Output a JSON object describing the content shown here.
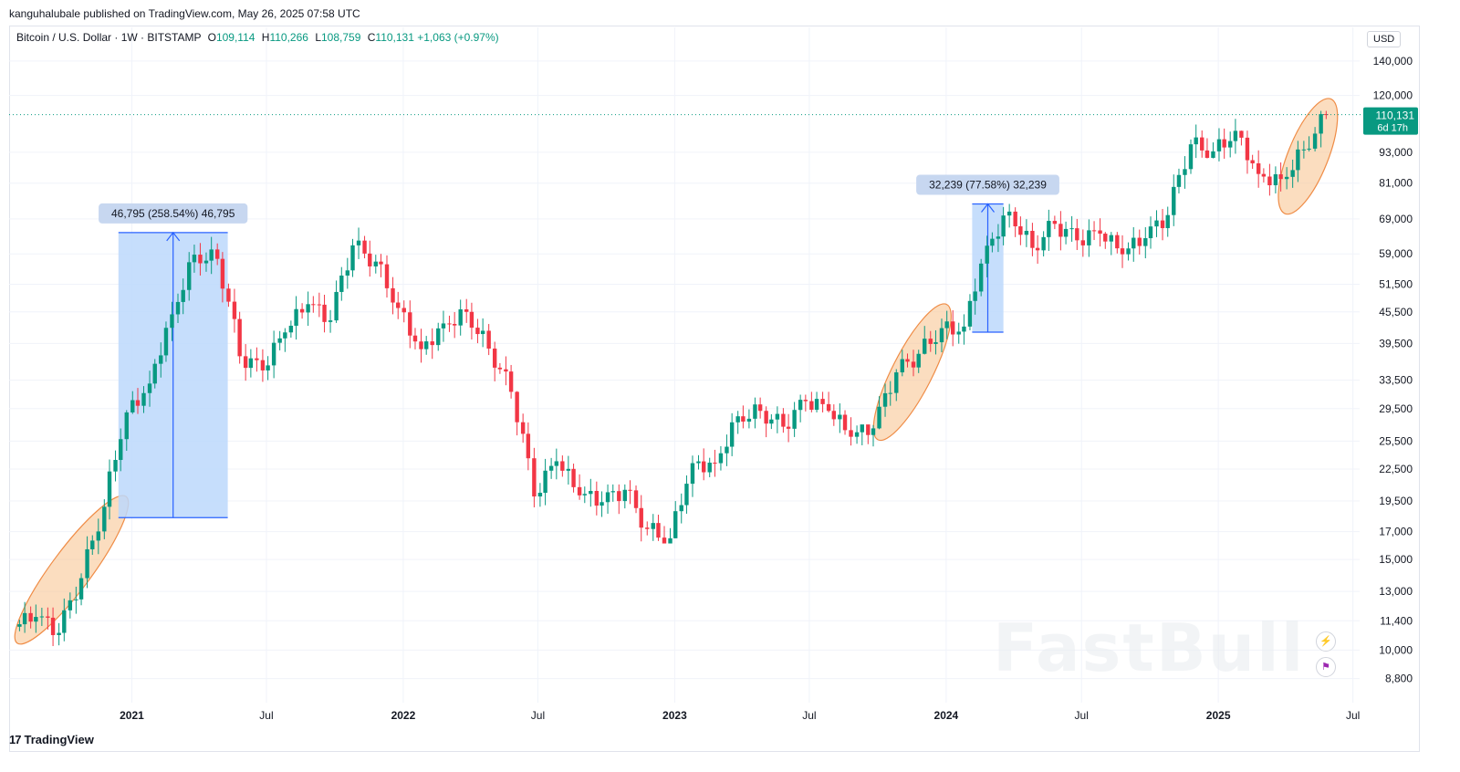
{
  "publisher_line": "kanguhalubale published on TradingView.com, May 26, 2025 07:58 UTC",
  "legend": {
    "symbol": "Bitcoin / U.S. Dollar · 1W · BITSTAMP",
    "o_key": "O",
    "o_val": "109,114",
    "h_key": "H",
    "h_val": "110,266",
    "l_key": "L",
    "l_val": "108,759",
    "c_key": "C",
    "c_val": "110,131",
    "change": "+1,063 (+0.97%)"
  },
  "currency": "USD",
  "brand": "TradingView",
  "watermark": "FastBull",
  "side_icons": [
    "flash-icon",
    "flag-icon"
  ],
  "colors": {
    "up": "#089981",
    "down": "#f23645",
    "measure_fill": "#bcd8fb",
    "measure_line": "#2962ff",
    "ellipse_fill": "#f8c794",
    "ellipse_line": "#ef8c46",
    "last_price_bg": "#089981"
  },
  "chart_data": {
    "type": "candlestick",
    "scale": "log",
    "x": [
      "2020-08",
      "2020-09",
      "2020-10",
      "2020-11",
      "2020-12",
      "2021-01",
      "2021-02",
      "2021-03",
      "2021-04",
      "2021-05",
      "2021-06",
      "2021-07",
      "2021-08",
      "2021-09",
      "2021-10",
      "2021-11",
      "2021-12",
      "2022-01",
      "2022-02",
      "2022-03",
      "2022-04",
      "2022-05",
      "2022-06",
      "2022-07",
      "2022-08",
      "2022-09",
      "2022-10",
      "2022-11",
      "2022-12",
      "2023-01",
      "2023-02",
      "2023-03",
      "2023-04",
      "2023-05",
      "2023-06",
      "2023-07",
      "2023-08",
      "2023-09",
      "2023-10",
      "2023-11",
      "2023-12",
      "2024-01",
      "2024-02",
      "2024-03",
      "2024-04",
      "2024-05",
      "2024-06",
      "2024-07",
      "2024-08",
      "2024-09",
      "2024-10",
      "2024-11",
      "2024-12",
      "2025-01",
      "2025-02",
      "2025-03",
      "2025-04",
      "2025-05"
    ],
    "close": [
      11600,
      10800,
      13800,
      19000,
      29000,
      33000,
      45000,
      58800,
      57700,
      37300,
      35000,
      41500,
      47100,
      43800,
      61300,
      57000,
      46300,
      38500,
      43200,
      45500,
      38600,
      31800,
      19900,
      23300,
      20000,
      19400,
      20500,
      17200,
      16500,
      23100,
      23100,
      28500,
      29200,
      27200,
      30500,
      29200,
      26000,
      27000,
      34700,
      37700,
      42300,
      42600,
      61200,
      71300,
      60600,
      67500,
      62700,
      64600,
      58900,
      63300,
      70200,
      96400,
      93400,
      102400,
      84400,
      82500,
      94200,
      110131
    ],
    "wick_high": [
      12400,
      12100,
      14100,
      19900,
      29300,
      41900,
      58300,
      61700,
      64800,
      59500,
      41300,
      42300,
      50500,
      52900,
      67000,
      69000,
      59000,
      47900,
      45800,
      48200,
      47400,
      39800,
      31900,
      24700,
      25200,
      22700,
      21000,
      21400,
      18400,
      23900,
      25200,
      29200,
      31000,
      29800,
      31400,
      31800,
      30200,
      27400,
      35200,
      38400,
      44700,
      49000,
      64000,
      73800,
      72700,
      71900,
      71900,
      70000,
      65100,
      66500,
      73500,
      99600,
      108300,
      109300,
      102500,
      95000,
      97900,
      111970
    ],
    "wick_low": [
      10800,
      10000,
      10400,
      13200,
      17600,
      28800,
      30400,
      43000,
      47000,
      30000,
      28800,
      29300,
      37300,
      39600,
      43300,
      53300,
      42000,
      33000,
      34300,
      37200,
      37500,
      26700,
      17600,
      18800,
      19600,
      18150,
      18200,
      15500,
      16300,
      16500,
      21400,
      19600,
      27000,
      25800,
      24800,
      29000,
      25000,
      24900,
      26900,
      34100,
      37600,
      38500,
      41900,
      59400,
      56500,
      56400,
      58400,
      53500,
      49050,
      52500,
      58900,
      66800,
      90500,
      89300,
      78200,
      76600,
      74400,
      93400
    ],
    "y_ticks": [
      8800,
      10000,
      11400,
      13000,
      15000,
      17000,
      19500,
      22500,
      25500,
      29500,
      33500,
      39500,
      45500,
      51500,
      59000,
      69000,
      81000,
      93000,
      120000,
      140000
    ],
    "y_tick_labels": [
      "8,800",
      "10,000",
      "11,400",
      "13,000",
      "15,000",
      "17,000",
      "19,500",
      "22,500",
      "25,500",
      "29,500",
      "33,500",
      "39,500",
      "45,500",
      "51,500",
      "59,000",
      "69,000",
      "81,000",
      "93,000",
      "120,000",
      "140,000"
    ],
    "x_ticks": [
      {
        "label": "2021",
        "date": "2021-01-01",
        "bold": true
      },
      {
        "label": "Jul",
        "date": "2021-07-01",
        "bold": false
      },
      {
        "label": "2022",
        "date": "2022-01-01",
        "bold": true
      },
      {
        "label": "Jul",
        "date": "2022-07-01",
        "bold": false
      },
      {
        "label": "2023",
        "date": "2023-01-01",
        "bold": true
      },
      {
        "label": "Jul",
        "date": "2023-07-01",
        "bold": false
      },
      {
        "label": "2024",
        "date": "2024-01-01",
        "bold": true
      },
      {
        "label": "Jul",
        "date": "2024-07-01",
        "bold": false
      },
      {
        "label": "2025",
        "date": "2025-01-01",
        "bold": true
      },
      {
        "label": "Jul",
        "date": "2025-07-01",
        "bold": false
      }
    ],
    "last_price": {
      "value": 110131,
      "label": "110,131",
      "countdown": "6d 17h"
    },
    "measures": [
      {
        "label": "46,795 (258.54%) 46,795",
        "from_date": "2020-12-14",
        "to_date": "2021-05-10",
        "low": 18100,
        "high": 64900
      },
      {
        "label": "32,239 (77.58%) 32,239",
        "from_date": "2024-02-05",
        "to_date": "2024-03-18",
        "low": 41550,
        "high": 73790
      }
    ],
    "highlights": [
      {
        "from_date": "2020-08-10",
        "to_date": "2020-12-14",
        "low": 10800,
        "high": 19000
      },
      {
        "from_date": "2023-10-09",
        "to_date": "2023-12-25",
        "low": 27000,
        "high": 44700
      },
      {
        "from_date": "2025-04-07",
        "to_date": "2025-05-26",
        "low": 74500,
        "high": 112000
      }
    ]
  }
}
